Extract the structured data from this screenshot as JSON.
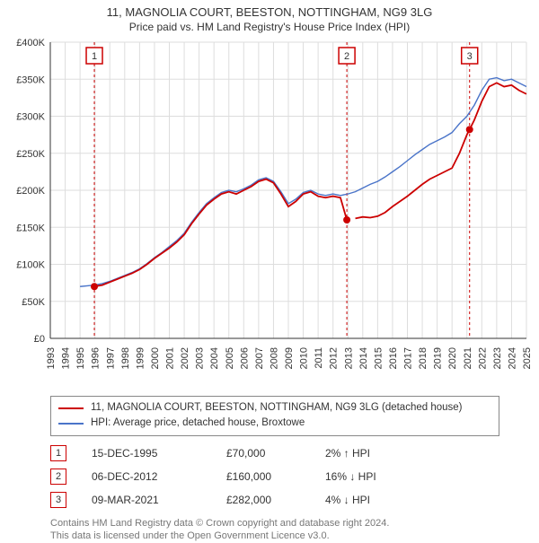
{
  "title_line1": "11, MAGNOLIA COURT, BEESTON, NOTTINGHAM, NG9 3LG",
  "title_line2": "Price paid vs. HM Land Registry's House Price Index (HPI)",
  "chart": {
    "type": "line",
    "background_color": "#ffffff",
    "grid_color": "#dddddd",
    "axis_color": "#333333",
    "x_years": [
      1993,
      1994,
      1995,
      1996,
      1997,
      1998,
      1999,
      2000,
      2001,
      2002,
      2003,
      2004,
      2005,
      2006,
      2007,
      2008,
      2009,
      2010,
      2011,
      2012,
      2013,
      2014,
      2015,
      2016,
      2017,
      2018,
      2019,
      2020,
      2021,
      2022,
      2023,
      2024,
      2025
    ],
    "x_years_text": [
      "1993",
      "1994",
      "1995",
      "1996",
      "1997",
      "1998",
      "1999",
      "2000",
      "2001",
      "2002",
      "2003",
      "2004",
      "2005",
      "2006",
      "2007",
      "2008",
      "2009",
      "2010",
      "2011",
      "2012",
      "2013",
      "2014",
      "2015",
      "2016",
      "2017",
      "2018",
      "2019",
      "2020",
      "2021",
      "2022",
      "2023",
      "2024",
      "2025"
    ],
    "ylim": [
      0,
      400000
    ],
    "ytick_step": 50000,
    "ytick_labels": [
      "£0",
      "£50K",
      "£100K",
      "£150K",
      "£200K",
      "£250K",
      "£300K",
      "£350K",
      "£400K"
    ],
    "series": [
      {
        "name": "property",
        "label": "11, MAGNOLIA COURT, BEESTON, NOTTINGHAM, NG9 3LG (detached house)",
        "color": "#cc0000",
        "line_width": 1.8,
        "points": [
          [
            1995.96,
            70000
          ],
          [
            1996.5,
            72000
          ],
          [
            1997.0,
            76000
          ],
          [
            1997.5,
            80000
          ],
          [
            1998.0,
            84000
          ],
          [
            1998.5,
            88000
          ],
          [
            1999.0,
            93000
          ],
          [
            1999.5,
            100000
          ],
          [
            2000.0,
            108000
          ],
          [
            2000.5,
            115000
          ],
          [
            2001.0,
            122000
          ],
          [
            2001.5,
            130000
          ],
          [
            2002.0,
            140000
          ],
          [
            2002.5,
            155000
          ],
          [
            2003.0,
            168000
          ],
          [
            2003.5,
            180000
          ],
          [
            2004.0,
            188000
          ],
          [
            2004.5,
            195000
          ],
          [
            2005.0,
            198000
          ],
          [
            2005.5,
            195000
          ],
          [
            2006.0,
            200000
          ],
          [
            2006.5,
            205000
          ],
          [
            2007.0,
            212000
          ],
          [
            2007.5,
            215000
          ],
          [
            2008.0,
            210000
          ],
          [
            2008.5,
            195000
          ],
          [
            2009.0,
            178000
          ],
          [
            2009.5,
            185000
          ],
          [
            2010.0,
            195000
          ],
          [
            2010.5,
            198000
          ],
          [
            2011.0,
            192000
          ],
          [
            2011.5,
            190000
          ],
          [
            2012.0,
            192000
          ],
          [
            2012.5,
            190000
          ],
          [
            2012.93,
            160000
          ],
          [
            2013.5,
            162000
          ],
          [
            2014.0,
            164000
          ],
          [
            2014.5,
            163000
          ],
          [
            2015.0,
            165000
          ],
          [
            2015.5,
            170000
          ],
          [
            2016.0,
            178000
          ],
          [
            2016.5,
            185000
          ],
          [
            2017.0,
            192000
          ],
          [
            2017.5,
            200000
          ],
          [
            2018.0,
            208000
          ],
          [
            2018.5,
            215000
          ],
          [
            2019.0,
            220000
          ],
          [
            2019.5,
            225000
          ],
          [
            2020.0,
            230000
          ],
          [
            2020.5,
            250000
          ],
          [
            2021.0,
            275000
          ],
          [
            2021.18,
            282000
          ],
          [
            2021.5,
            295000
          ],
          [
            2022.0,
            320000
          ],
          [
            2022.5,
            340000
          ],
          [
            2023.0,
            345000
          ],
          [
            2023.5,
            340000
          ],
          [
            2024.0,
            342000
          ],
          [
            2024.5,
            335000
          ],
          [
            2025.0,
            330000
          ]
        ],
        "gap_after_index": 34
      },
      {
        "name": "hpi",
        "label": "HPI: Average price, detached house, Broxtowe",
        "color": "#4a74c9",
        "line_width": 1.4,
        "points": [
          [
            1995.0,
            70000
          ],
          [
            1995.5,
            71000
          ],
          [
            1996.0,
            72000
          ],
          [
            1996.5,
            74000
          ],
          [
            1997.0,
            77000
          ],
          [
            1997.5,
            81000
          ],
          [
            1998.0,
            85000
          ],
          [
            1998.5,
            89000
          ],
          [
            1999.0,
            94000
          ],
          [
            1999.5,
            101000
          ],
          [
            2000.0,
            109000
          ],
          [
            2000.5,
            116000
          ],
          [
            2001.0,
            124000
          ],
          [
            2001.5,
            132000
          ],
          [
            2002.0,
            142000
          ],
          [
            2002.5,
            157000
          ],
          [
            2003.0,
            170000
          ],
          [
            2003.5,
            182000
          ],
          [
            2004.0,
            190000
          ],
          [
            2004.5,
            197000
          ],
          [
            2005.0,
            200000
          ],
          [
            2005.5,
            198000
          ],
          [
            2006.0,
            202000
          ],
          [
            2006.5,
            207000
          ],
          [
            2007.0,
            214000
          ],
          [
            2007.5,
            217000
          ],
          [
            2008.0,
            212000
          ],
          [
            2008.5,
            198000
          ],
          [
            2009.0,
            182000
          ],
          [
            2009.5,
            188000
          ],
          [
            2010.0,
            197000
          ],
          [
            2010.5,
            200000
          ],
          [
            2011.0,
            195000
          ],
          [
            2011.5,
            193000
          ],
          [
            2012.0,
            195000
          ],
          [
            2012.5,
            193000
          ],
          [
            2013.0,
            195000
          ],
          [
            2013.5,
            198000
          ],
          [
            2014.0,
            203000
          ],
          [
            2014.5,
            208000
          ],
          [
            2015.0,
            212000
          ],
          [
            2015.5,
            218000
          ],
          [
            2016.0,
            225000
          ],
          [
            2016.5,
            232000
          ],
          [
            2017.0,
            240000
          ],
          [
            2017.5,
            248000
          ],
          [
            2018.0,
            255000
          ],
          [
            2018.5,
            262000
          ],
          [
            2019.0,
            267000
          ],
          [
            2019.5,
            272000
          ],
          [
            2020.0,
            278000
          ],
          [
            2020.5,
            290000
          ],
          [
            2021.0,
            300000
          ],
          [
            2021.5,
            315000
          ],
          [
            2022.0,
            335000
          ],
          [
            2022.5,
            350000
          ],
          [
            2023.0,
            352000
          ],
          [
            2023.5,
            348000
          ],
          [
            2024.0,
            350000
          ],
          [
            2024.5,
            345000
          ],
          [
            2025.0,
            340000
          ]
        ]
      }
    ],
    "markers": [
      {
        "id": "1",
        "x": 1995.96,
        "y": 70000,
        "color": "#cc0000",
        "dash_color": "#cc0000"
      },
      {
        "id": "2",
        "x": 2012.93,
        "y": 160000,
        "color": "#cc0000",
        "dash_color": "#cc0000"
      },
      {
        "id": "3",
        "x": 2021.18,
        "y": 282000,
        "color": "#cc0000",
        "dash_color": "#cc0000"
      }
    ]
  },
  "legend": {
    "rows": [
      {
        "color": "#cc0000",
        "label": "11, MAGNOLIA COURT, BEESTON, NOTTINGHAM, NG9 3LG (detached house)"
      },
      {
        "color": "#4a74c9",
        "label": "HPI: Average price, detached house, Broxtowe"
      }
    ]
  },
  "transactions": [
    {
      "id": "1",
      "date": "15-DEC-1995",
      "price": "£70,000",
      "delta": "2% ↑ HPI",
      "badge_color": "#cc0000"
    },
    {
      "id": "2",
      "date": "06-DEC-2012",
      "price": "£160,000",
      "delta": "16% ↓ HPI",
      "badge_color": "#cc0000"
    },
    {
      "id": "3",
      "date": "09-MAR-2021",
      "price": "£282,000",
      "delta": "4% ↓ HPI",
      "badge_color": "#cc0000"
    }
  ],
  "footnote_line1": "Contains HM Land Registry data © Crown copyright and database right 2024.",
  "footnote_line2": "This data is licensed under the Open Government Licence v3.0."
}
